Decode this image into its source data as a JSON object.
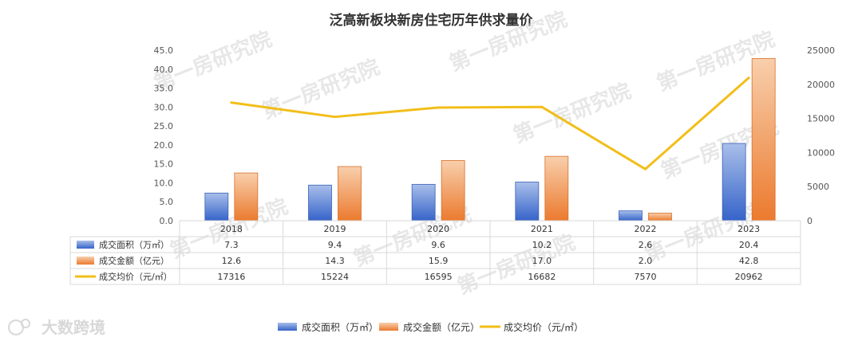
{
  "chart_data": {
    "type": "bar",
    "title": "泛高新板块新房住宅历年供求量价",
    "categories": [
      "2018",
      "2019",
      "2020",
      "2021",
      "2022",
      "2023"
    ],
    "series": [
      {
        "name": "成交面积（万㎡）",
        "type": "bar",
        "axis": "left",
        "color": "#4472C4",
        "values": [
          7.3,
          9.4,
          9.6,
          10.2,
          2.6,
          20.4
        ]
      },
      {
        "name": "成交金额（亿元）",
        "type": "bar",
        "axis": "left",
        "color": "#ED7D31",
        "values": [
          12.6,
          14.3,
          15.9,
          17.0,
          2.0,
          42.8
        ]
      },
      {
        "name": "成交均价（元/㎡）",
        "type": "line",
        "axis": "right",
        "color": "#F2BE1A",
        "values": [
          17316,
          15224,
          16595,
          16682,
          7570,
          20962
        ]
      }
    ],
    "y_left": {
      "ylim": [
        0,
        45
      ],
      "ticks": [
        "0.0",
        "5.0",
        "10.0",
        "15.0",
        "20.0",
        "25.0",
        "30.0",
        "35.0",
        "40.0",
        "45.0"
      ]
    },
    "y_right": {
      "ylim": [
        0,
        25000
      ],
      "ticks": [
        "0",
        "5000",
        "10000",
        "15000",
        "20000",
        "25000"
      ]
    },
    "table": {
      "rows": [
        {
          "label": "成交面积（万㎡）",
          "cells": [
            "7.3",
            "9.4",
            "9.6",
            "10.2",
            "2.6",
            "20.4"
          ]
        },
        {
          "label": "成交金额（亿元）",
          "cells": [
            "12.6",
            "14.3",
            "15.9",
            "17.0",
            "2.0",
            "42.8"
          ]
        },
        {
          "label": "成交均价（元/㎡）",
          "cells": [
            "17316",
            "15224",
            "16595",
            "16682",
            "7570",
            "20962"
          ]
        }
      ]
    },
    "legend_position": "bottom",
    "grid": false
  },
  "watermark": "第一房研究院",
  "logo_text": "大数跨境"
}
